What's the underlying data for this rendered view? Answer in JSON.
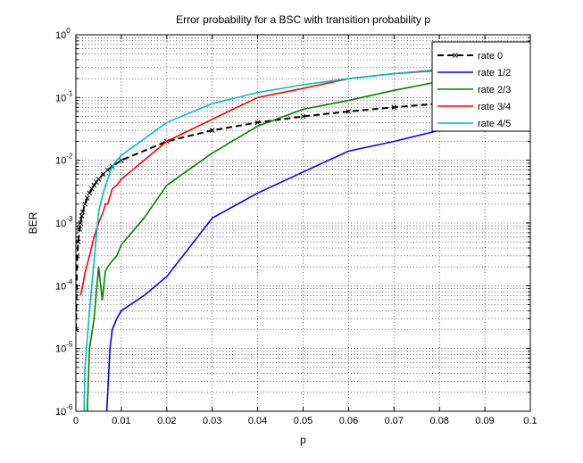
{
  "chart_data": {
    "type": "line",
    "title": "Error probability for a BSC with transition probability p",
    "xlabel": "p",
    "ylabel": "BER",
    "xlim": [
      0,
      0.1
    ],
    "ylim": [
      1e-06,
      1
    ],
    "yscale": "log",
    "grid": true,
    "legend_position": "top-right",
    "x_ticks": [
      "0",
      "0.01",
      "0.02",
      "0.03",
      "0.04",
      "0.05",
      "0.06",
      "0.07",
      "0.08",
      "0.09",
      "0.1"
    ],
    "y_ticks": [
      {
        "base": "10",
        "exp": "-6"
      },
      {
        "base": "10",
        "exp": "-5"
      },
      {
        "base": "10",
        "exp": "-4"
      },
      {
        "base": "10",
        "exp": "-3"
      },
      {
        "base": "10",
        "exp": "-2"
      },
      {
        "base": "10",
        "exp": "-1"
      },
      {
        "base": "10",
        "exp": "0"
      }
    ],
    "series": [
      {
        "name": "rate 0",
        "color": "#000000",
        "dashed": true,
        "markers": true,
        "x": [
          0,
          0.0003,
          0.0005,
          0.0008,
          0.001,
          0.0013,
          0.0015,
          0.002,
          0.0025,
          0.003,
          0.0035,
          0.004,
          0.0045,
          0.005,
          0.006,
          0.007,
          0.008,
          0.01,
          0.02,
          0.03,
          0.04,
          0.05,
          0.06,
          0.07,
          0.08,
          0.09,
          0.1
        ],
        "y": [
          2e-05,
          0.0003,
          0.0005,
          0.0008,
          0.001,
          0.0013,
          0.0015,
          0.002,
          0.0025,
          0.003,
          0.0035,
          0.004,
          0.0045,
          0.005,
          0.006,
          0.007,
          0.008,
          0.01,
          0.02,
          0.03,
          0.04,
          0.05,
          0.06,
          0.07,
          0.08,
          0.09,
          0.1
        ]
      },
      {
        "name": "rate 1/2",
        "color": "#0000ff",
        "dashed": false,
        "markers": false,
        "x": [
          0.0068,
          0.0075,
          0.008,
          0.009,
          0.01,
          0.015,
          0.02,
          0.03,
          0.04,
          0.05,
          0.06,
          0.07,
          0.08,
          0.09,
          0.1
        ],
        "y": [
          1e-06,
          1e-05,
          2e-05,
          3e-05,
          4e-05,
          7e-05,
          0.00014,
          0.0012,
          0.003,
          0.0065,
          0.014,
          0.02,
          0.03,
          0.04,
          0.05
        ]
      },
      {
        "name": "rate 2/3",
        "color": "#008000",
        "dashed": false,
        "markers": false,
        "x": [
          0.0025,
          0.003,
          0.004,
          0.005,
          0.0058,
          0.0065,
          0.007,
          0.008,
          0.009,
          0.01,
          0.015,
          0.02,
          0.03,
          0.04,
          0.05,
          0.06,
          0.07,
          0.08,
          0.09,
          0.1
        ],
        "y": [
          1e-06,
          1e-05,
          3e-05,
          0.0002,
          6e-05,
          0.00017,
          0.0002,
          0.00025,
          0.0003,
          0.00045,
          0.0012,
          0.004,
          0.013,
          0.035,
          0.065,
          0.09,
          0.13,
          0.18,
          0.22,
          0.26
        ]
      },
      {
        "name": "rate 3/4",
        "color": "#ff0000",
        "dashed": false,
        "markers": false,
        "x": [
          0.001,
          0.0015,
          0.002,
          0.003,
          0.004,
          0.005,
          0.006,
          0.0065,
          0.007,
          0.008,
          0.009,
          0.01,
          0.02,
          0.03,
          0.04,
          0.05,
          0.06,
          0.07,
          0.08,
          0.09,
          0.1
        ],
        "y": [
          7e-05,
          0.0001,
          0.00016,
          0.0003,
          0.0006,
          0.001,
          0.0015,
          0.002,
          0.002,
          0.0035,
          0.004,
          0.005,
          0.02,
          0.045,
          0.1,
          0.14,
          0.2,
          0.24,
          0.27,
          0.3,
          0.31
        ]
      },
      {
        "name": "rate 4/5",
        "color": "#00bfbf",
        "dashed": false,
        "markers": false,
        "x": [
          0.0018,
          0.002,
          0.003,
          0.004,
          0.005,
          0.006,
          0.007,
          0.008,
          0.009,
          0.01,
          0.02,
          0.03,
          0.04,
          0.05,
          0.06,
          0.07,
          0.08,
          0.09,
          0.1
        ],
        "y": [
          1e-06,
          5e-06,
          4e-05,
          0.00025,
          0.0015,
          0.003,
          0.005,
          0.008,
          0.01,
          0.012,
          0.04,
          0.08,
          0.12,
          0.16,
          0.2,
          0.24,
          0.28,
          0.3,
          0.31
        ]
      }
    ]
  }
}
